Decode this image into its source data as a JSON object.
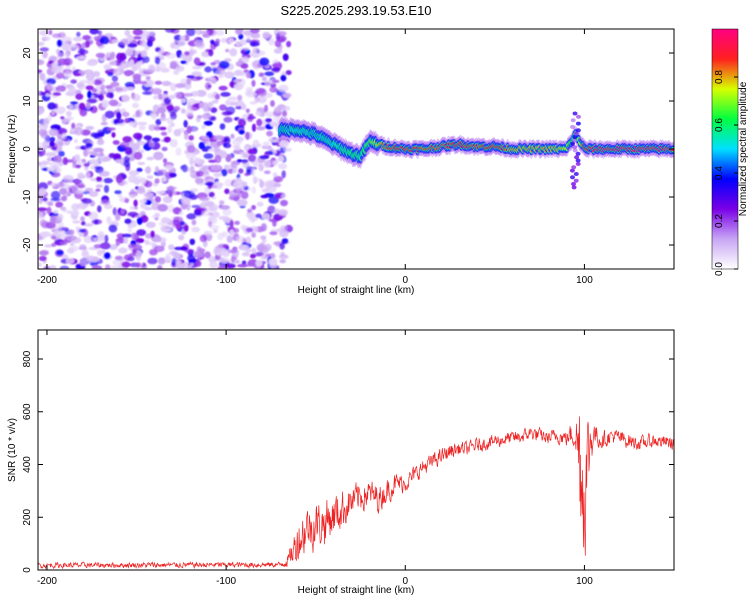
{
  "title": "S225.2025.293.19.53.E10",
  "chart_data": [
    {
      "type": "heatmap",
      "xlabel": "Height of straight line (km)",
      "ylabel": "Frequency (Hz)",
      "xlim": [
        -205,
        150
      ],
      "ylim": [
        -25,
        25
      ],
      "xticks": [
        -200,
        -100,
        0,
        100
      ],
      "yticks": [
        -20,
        -10,
        0,
        10,
        20
      ],
      "colorbar": {
        "label": "Normalized spectral amplitude",
        "range": [
          0,
          1
        ],
        "ticks": [
          0.0,
          0.2,
          0.4,
          0.6,
          0.8
        ],
        "tick_labels": [
          "0.0",
          "0.2",
          "0.4",
          "0.6",
          "0.8"
        ],
        "colors": [
          "#ffffff",
          "#c8a6f4",
          "#7a00e6",
          "#0000ff",
          "#00e0ff",
          "#00ff40",
          "#d8ff00",
          "#ff2020",
          "#ff0080"
        ]
      },
      "ridge": {
        "x": [
          -70,
          -60,
          -50,
          -40,
          -30,
          -25,
          -20,
          -10,
          0,
          10,
          20,
          30,
          40,
          50,
          60,
          70,
          80,
          90,
          95,
          100,
          110,
          120,
          130,
          140,
          150
        ],
        "frequency": [
          4,
          4,
          3,
          1,
          -1,
          -1.5,
          1.5,
          0.5,
          0,
          0,
          0.5,
          1,
          0.5,
          0.5,
          0,
          0,
          0,
          0,
          3,
          0,
          0,
          0,
          0,
          0,
          0
        ],
        "amplitude": [
          0.45,
          0.5,
          0.45,
          0.5,
          0.6,
          0.55,
          0.7,
          0.85,
          0.9,
          0.85,
          0.85,
          0.9,
          0.85,
          0.9,
          0.8,
          0.8,
          0.8,
          0.75,
          0.55,
          0.9,
          0.95,
          0.95,
          0.95,
          0.95,
          0.95
        ]
      },
      "noise_region": [
        -205,
        -65
      ]
    },
    {
      "type": "line",
      "xlabel": "Height of straight line (km)",
      "ylabel": "SNR (10 * v/v)",
      "xlim": [
        -205,
        150
      ],
      "ylim": [
        0,
        910
      ],
      "xticks": [
        -200,
        -100,
        0,
        100
      ],
      "yticks": [
        0,
        200,
        400,
        600,
        800
      ],
      "series": [
        {
          "name": "SNR",
          "color": "#ee2222",
          "x": [
            -205,
            -70,
            -65,
            -60,
            -55,
            -50,
            -45,
            -40,
            -35,
            -30,
            -25,
            -20,
            -15,
            -10,
            -5,
            0,
            5,
            10,
            15,
            20,
            25,
            30,
            35,
            40,
            45,
            50,
            55,
            60,
            65,
            70,
            75,
            80,
            85,
            90,
            95,
            97,
            100,
            103,
            105,
            110,
            115,
            120,
            130,
            140,
            150
          ],
          "values": [
            18,
            20,
            40,
            110,
            160,
            170,
            180,
            210,
            230,
            260,
            280,
            290,
            270,
            300,
            330,
            330,
            360,
            390,
            410,
            430,
            450,
            460,
            460,
            475,
            480,
            490,
            495,
            500,
            505,
            520,
            510,
            500,
            510,
            500,
            520,
            450,
            300,
            470,
            520,
            490,
            510,
            500,
            480,
            490,
            480
          ],
          "amplitude": [
            14,
            14,
            40,
            110,
            120,
            120,
            120,
            110,
            100,
            80,
            80,
            70,
            70,
            60,
            55,
            45,
            45,
            40,
            40,
            40,
            40,
            35,
            35,
            35,
            35,
            35,
            35,
            35,
            35,
            35,
            35,
            35,
            40,
            40,
            80,
            350,
            350,
            200,
            60,
            45,
            40,
            40,
            35,
            35,
            35
          ]
        }
      ]
    }
  ]
}
